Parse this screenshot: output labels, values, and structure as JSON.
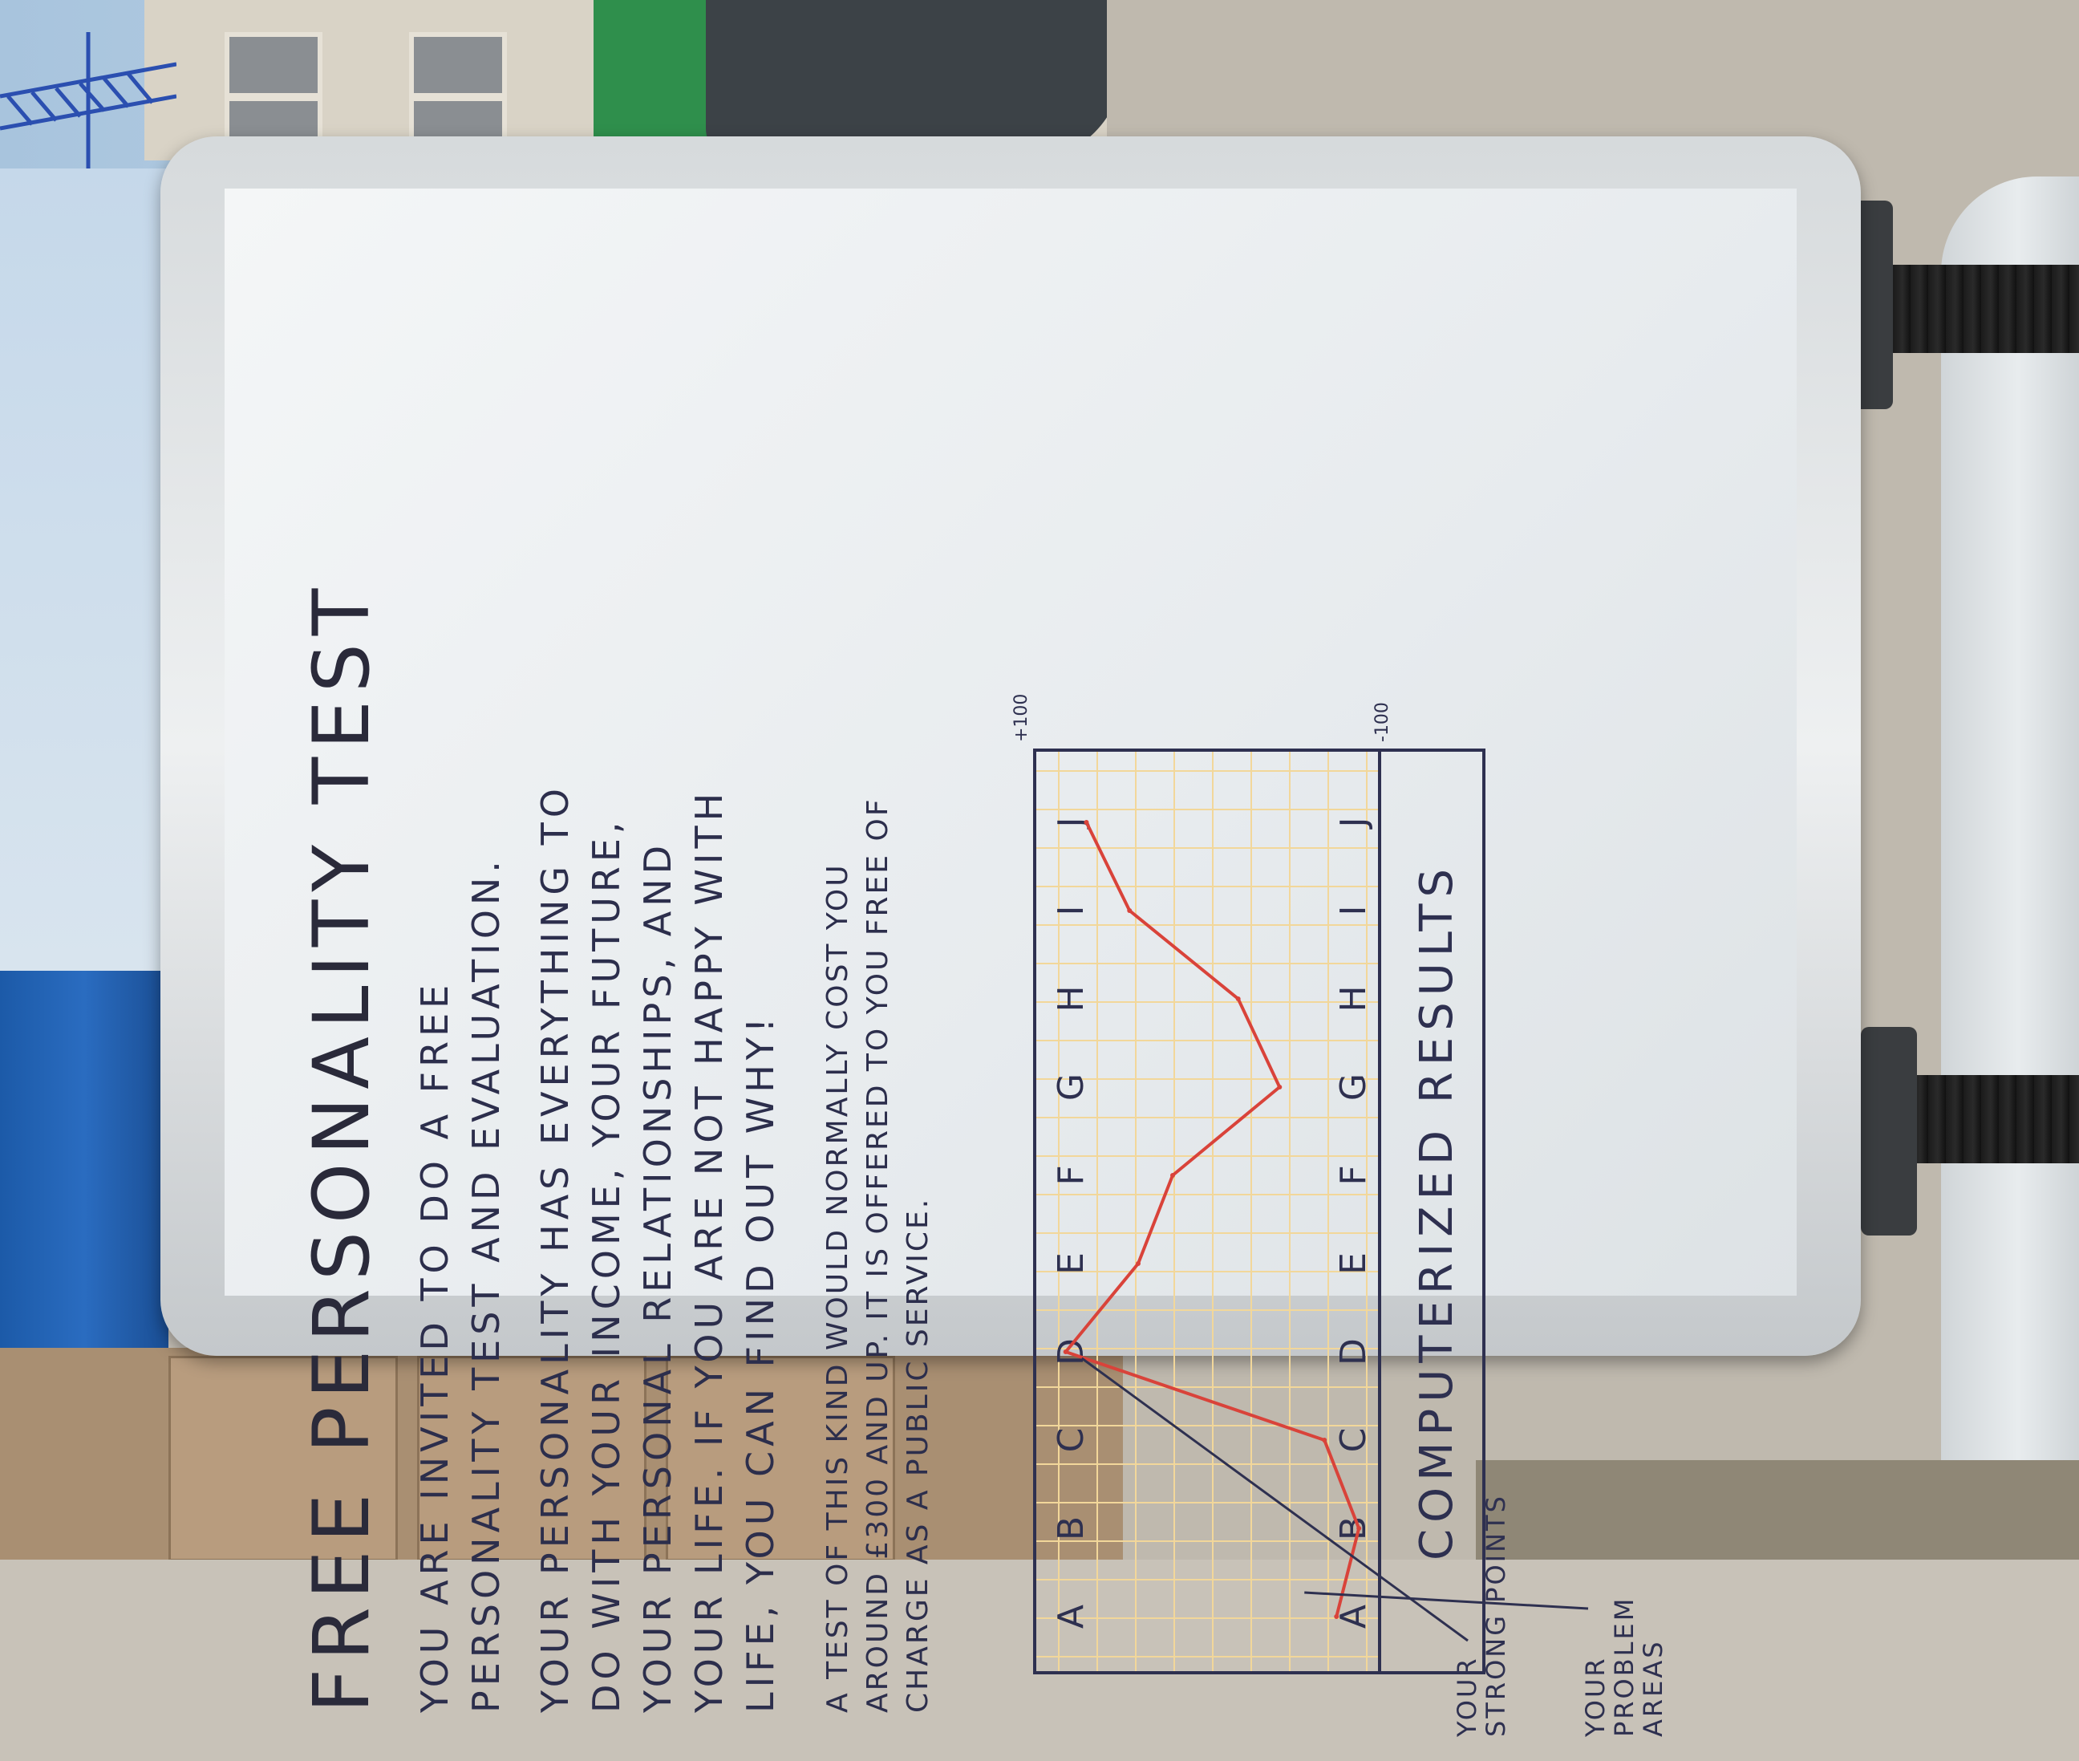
{
  "board": {
    "title": "FREE PERSONALITY TEST",
    "paragraph_1": "You are invited to do a free personality test and evaluation.",
    "paragraph_2": "Your personality has everything to do with your income, your future, your personal relationships, and your life. If you are not happy with life, you can find out why!",
    "paragraph_3": "A test of this kind would normally cost you around £300 and up. It is offered to you free of charge as a public service."
  },
  "chart_data": {
    "type": "line",
    "categories": [
      "A",
      "B",
      "C",
      "D",
      "E",
      "F",
      "G",
      "H",
      "I",
      "J"
    ],
    "top_labels": [
      "A",
      "B",
      "C",
      "D",
      "E",
      "F",
      "G",
      "H",
      "I",
      "J"
    ],
    "values": [
      -75,
      -88,
      -68,
      82,
      40,
      20,
      -42,
      -18,
      45,
      70
    ],
    "ylim": [
      -100,
      100
    ],
    "ytick_labels": [
      "+100",
      "-100"
    ],
    "grid": true,
    "footer": "COMPUTERIZED RESULTS",
    "annotations": [
      {
        "text": "YOUR STRONG POINTS",
        "target": "D"
      },
      {
        "text": "YOUR PROBLEM AREAS",
        "target": "A"
      }
    ],
    "line_color": "#d9433a",
    "grid_color": "#f2d79a",
    "ink_color": "#2e3050"
  }
}
